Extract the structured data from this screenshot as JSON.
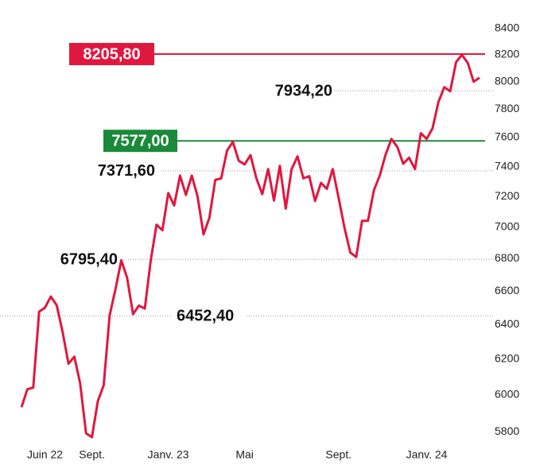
{
  "chart_data": {
    "type": "line",
    "x": [
      0,
      1,
      2,
      3,
      4,
      5,
      6,
      7,
      8,
      9,
      10,
      11,
      12,
      13,
      14,
      15,
      16,
      17,
      18,
      19,
      20,
      21,
      22,
      23,
      24,
      25,
      26,
      27,
      28,
      29,
      30,
      31,
      32,
      33,
      34,
      35,
      36,
      37,
      38,
      39,
      40,
      41,
      42,
      43,
      44,
      45,
      46,
      47,
      48,
      49,
      50,
      51,
      52,
      53,
      54,
      55,
      56,
      57,
      58,
      59,
      60,
      61,
      62,
      63,
      64,
      65,
      66,
      67,
      68,
      69,
      70,
      71,
      72,
      73,
      74,
      75,
      76,
      77,
      78
    ],
    "series": [
      {
        "color": "#e0173f",
        "values": [
          5932,
          6031,
          6040,
          6477,
          6500,
          6567,
          6515,
          6358,
          6174,
          6214,
          6063,
          5792,
          5771,
          5965,
          6054,
          6453,
          6612,
          6790,
          6680,
          6462,
          6513,
          6495,
          6787,
          7015,
          6980,
          7222,
          7140,
          7339,
          7210,
          7339,
          7198,
          6953,
          7060,
          7310,
          7320,
          7510,
          7570,
          7440,
          7415,
          7478,
          7320,
          7215,
          7383,
          7173,
          7405,
          7120,
          7383,
          7470,
          7320,
          7335,
          7170,
          7290,
          7250,
          7383,
          7190,
          6995,
          6838,
          6810,
          7040,
          7040,
          7240,
          7339,
          7480,
          7590,
          7535,
          7420,
          7460,
          7383,
          7630,
          7590,
          7665,
          7853,
          7960,
          7930,
          8145,
          8200,
          8140,
          8000,
          8030
        ]
      }
    ],
    "xlim": [
      0,
      78
    ],
    "xticks": [
      {
        "value": 4,
        "label": "Juin 22"
      },
      {
        "value": 12,
        "label": "Sept."
      },
      {
        "value": 25,
        "label": "Janv. 23"
      },
      {
        "value": 38,
        "label": "Mai"
      },
      {
        "value": 54,
        "label": "Sept."
      },
      {
        "value": 69,
        "label": "Janv. 24"
      }
    ],
    "ylim": [
      5750,
      8400
    ],
    "log_scale": true,
    "yticks": [
      5800,
      6000,
      6200,
      6400,
      6600,
      6800,
      7000,
      7200,
      7400,
      7600,
      7800,
      8000,
      8200,
      8400
    ],
    "reference_lines": [
      {
        "value": 8205.8,
        "label": "8205,80",
        "style": "box",
        "color": "#e0173f"
      },
      {
        "value": 7934.2,
        "label": "7934,20",
        "style": "dotted",
        "color": "#999999"
      },
      {
        "value": 7577.0,
        "label": "7577,00",
        "style": "box",
        "color": "#1a8a3a"
      },
      {
        "value": 7371.6,
        "label": "7371,60",
        "style": "dotted",
        "color": "#999999"
      },
      {
        "value": 6795.4,
        "label": "6795,40",
        "style": "dotted",
        "color": "#999999"
      },
      {
        "value": 6452.4,
        "label": "6452,40",
        "style": "dotted",
        "color": "#999999"
      }
    ]
  }
}
